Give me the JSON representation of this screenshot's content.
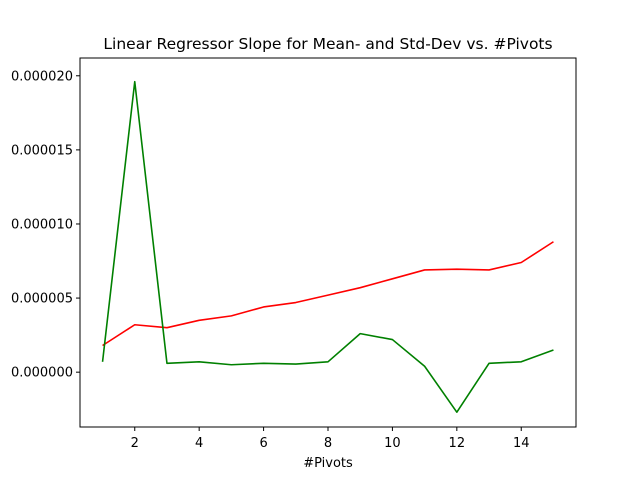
{
  "chart_data": {
    "type": "line",
    "title": "Linear Regressor Slope for Mean- and Std-Dev vs. #Pivots",
    "xlabel": "#Pivots",
    "ylabel": "",
    "x": [
      1,
      2,
      3,
      4,
      5,
      6,
      7,
      8,
      9,
      10,
      11,
      12,
      13,
      14,
      15
    ],
    "xlim": [
      0.3,
      15.7
    ],
    "ylim": [
      -3.7e-06,
      2.12e-05
    ],
    "xticks": [
      2,
      4,
      6,
      8,
      10,
      12,
      14
    ],
    "yticks": [
      0.0,
      5e-06,
      1e-05,
      1.5e-05,
      2e-05
    ],
    "ytick_labels": [
      "0.000000",
      "0.000005",
      "0.000010",
      "0.000015",
      "0.000020"
    ],
    "grid": false,
    "series": [
      {
        "color": "#ff0000",
        "values": [
          1.8e-06,
          3.2e-06,
          3e-06,
          3.5e-06,
          3.8e-06,
          4.4e-06,
          4.7e-06,
          5.2e-06,
          5.7e-06,
          6.3e-06,
          6.9e-06,
          6.95e-06,
          6.9e-06,
          7.4e-06,
          8.8e-06
        ]
      },
      {
        "color": "#008000",
        "values": [
          7e-07,
          1.96e-05,
          6e-07,
          7e-07,
          5e-07,
          6e-07,
          5.5e-07,
          7e-07,
          2.6e-06,
          2.2e-06,
          4e-07,
          -2.7e-06,
          6e-07,
          7e-07,
          1.5e-06
        ]
      }
    ]
  }
}
